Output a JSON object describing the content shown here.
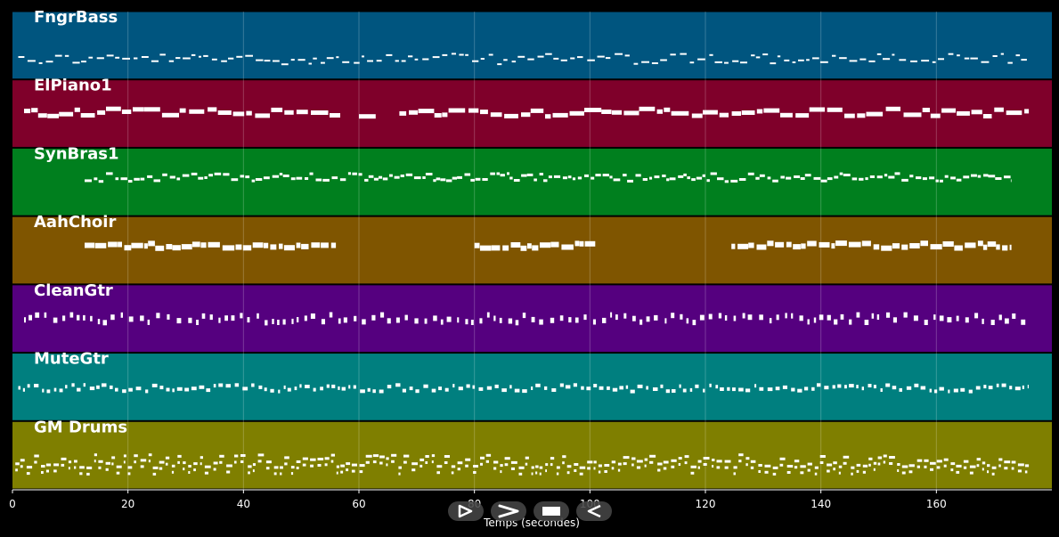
{
  "chart_data": {
    "type": "piano-roll",
    "xlabel": "Temps (secondes)",
    "xlim": [
      0,
      180
    ],
    "xticks": [
      0,
      20,
      40,
      60,
      80,
      100,
      120,
      140,
      160
    ],
    "grid": true,
    "tracks": [
      {
        "name": "FngrBass",
        "color": "#00557f",
        "start": 1,
        "end": 176,
        "activity": [
          [
            1,
            176
          ]
        ]
      },
      {
        "name": "ElPiano1",
        "color": "#7f002a",
        "start": 2,
        "end": 176,
        "activity": [
          [
            2,
            57
          ],
          [
            60,
            63
          ],
          [
            67,
            176
          ]
        ]
      },
      {
        "name": "SynBras1",
        "color": "#007f1e",
        "start": 12.5,
        "end": 173,
        "activity": [
          [
            12.5,
            173
          ]
        ]
      },
      {
        "name": "AahChoir",
        "color": "#7f5500",
        "start": 12.5,
        "end": 173,
        "activity": [
          [
            12.5,
            56
          ],
          [
            80,
            101
          ],
          [
            124.5,
            173
          ]
        ]
      },
      {
        "name": "CleanGtr",
        "color": "#55007f",
        "start": 2,
        "end": 176,
        "activity": [
          [
            2,
            176
          ]
        ]
      },
      {
        "name": "MuteGtr",
        "color": "#007f7f",
        "start": 1,
        "end": 176,
        "activity": [
          [
            1,
            176
          ]
        ]
      },
      {
        "name": "GM Drums",
        "color": "#7f7f00",
        "start": 0.5,
        "end": 176,
        "activity": [
          [
            0.5,
            176
          ]
        ]
      }
    ]
  },
  "controls": [
    {
      "name": "play-alt-button",
      "icon": "play-outline-icon"
    },
    {
      "name": "forward-button",
      "icon": "chevron-right-icon"
    },
    {
      "name": "stop-button",
      "icon": "stop-icon"
    },
    {
      "name": "rewind-button",
      "icon": "play-reverse-icon"
    }
  ]
}
